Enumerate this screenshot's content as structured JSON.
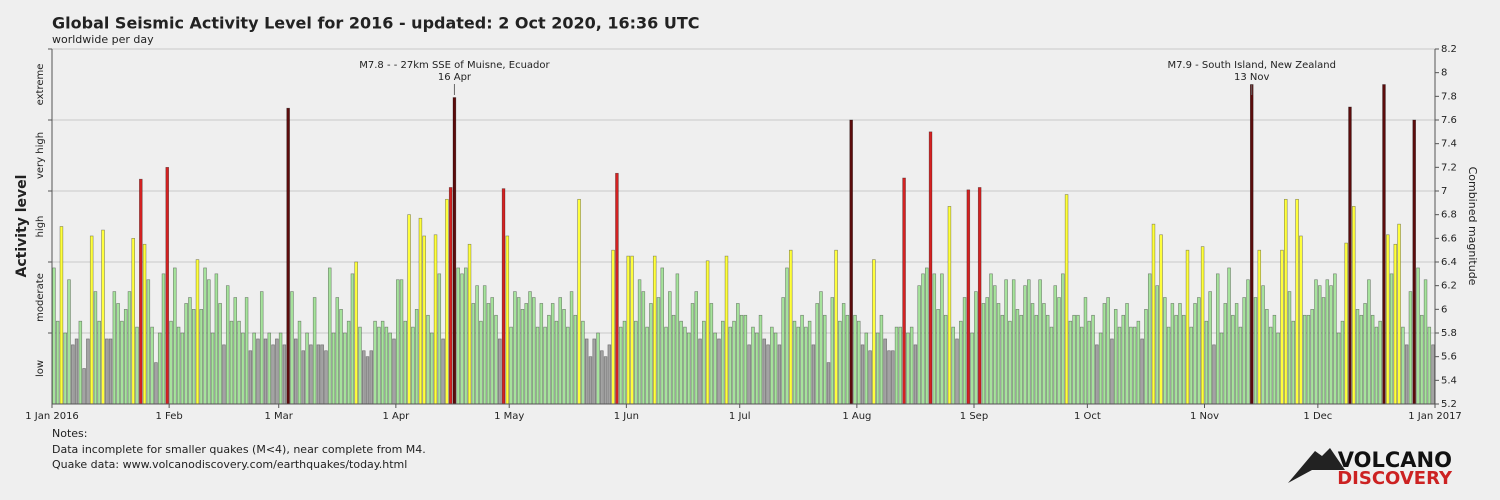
{
  "chart_data": {
    "type": "bar",
    "title": "Global Seismic Activity Level for 2016 - updated:  2 Oct 2020, 16:36 UTC",
    "subtitle": "worldwide per day",
    "y_label": "Activity level",
    "y2_label": "Combined magnitude",
    "xlim": [
      0,
      366
    ],
    "xticks": [
      {
        "value": 0,
        "label": "1 Jan 2016"
      },
      {
        "value": 31,
        "label": "1 Feb"
      },
      {
        "value": 60,
        "label": "1 Mar"
      },
      {
        "value": 91,
        "label": "1 Apr"
      },
      {
        "value": 121,
        "label": "1 May"
      },
      {
        "value": 152,
        "label": "1 Jun"
      },
      {
        "value": 182,
        "label": "1 Jul"
      },
      {
        "value": 213,
        "label": "1 Aug"
      },
      {
        "value": 244,
        "label": "1 Sep"
      },
      {
        "value": 274,
        "label": "1 Oct"
      },
      {
        "value": 305,
        "label": "1 Nov"
      },
      {
        "value": 335,
        "label": "1 Dec"
      },
      {
        "value": 366,
        "label": "1 Jan 2017"
      }
    ],
    "ylim": [
      5.2,
      8.2
    ],
    "yticks": [
      5.2,
      5.4,
      5.6,
      5.8,
      6,
      6.2,
      6.4,
      6.6,
      6.8,
      7,
      7.2,
      7.4,
      7.6,
      7.8,
      8,
      8.2
    ],
    "levels": [
      {
        "name": "low",
        "color": "#a3a3a3",
        "from": 5.2,
        "to": 5.8
      },
      {
        "name": "moderate",
        "color": "#a6e39c",
        "from": 5.8,
        "to": 6.4
      },
      {
        "name": "high",
        "color": "#ffff3c",
        "from": 6.4,
        "to": 7.0
      },
      {
        "name": "very high",
        "color": "#d42222",
        "from": 7.0,
        "to": 7.6
      },
      {
        "name": "extreme",
        "color": "#5c0c0c",
        "from": 7.6,
        "to": 8.2
      }
    ],
    "grid": true,
    "annotations": [
      {
        "text": "M7.8 - - 27km SSE of Muisne, Ecuador",
        "date": "16 Apr",
        "x": 106
      },
      {
        "text": "M7.9 - South Island, New Zealand",
        "date": "13 Nov",
        "x": 317
      }
    ],
    "values": [
      6.35,
      5.9,
      6.7,
      5.8,
      6.25,
      5.7,
      5.75,
      5.9,
      5.5,
      5.75,
      6.62,
      6.15,
      5.9,
      6.67,
      5.75,
      5.75,
      6.15,
      6.05,
      5.9,
      6.0,
      6.15,
      6.6,
      5.85,
      7.1,
      6.55,
      6.25,
      5.85,
      5.55,
      5.8,
      6.3,
      7.2,
      5.9,
      6.35,
      5.85,
      5.8,
      6.05,
      6.1,
      6.0,
      6.42,
      6.0,
      6.35,
      6.25,
      5.8,
      6.3,
      6.05,
      5.7,
      6.2,
      5.9,
      6.1,
      5.9,
      5.8,
      6.1,
      5.65,
      5.8,
      5.75,
      6.15,
      5.75,
      5.8,
      5.7,
      5.75,
      5.8,
      5.7,
      7.7,
      6.15,
      5.75,
      5.9,
      5.65,
      5.8,
      5.7,
      6.1,
      5.7,
      5.7,
      5.65,
      6.35,
      5.8,
      6.1,
      6.0,
      5.8,
      5.9,
      6.3,
      6.4,
      5.85,
      5.65,
      5.6,
      5.65,
      5.9,
      5.85,
      5.9,
      5.85,
      5.8,
      5.75,
      6.25,
      6.25,
      5.9,
      6.8,
      5.85,
      6.0,
      6.77,
      6.62,
      5.95,
      5.8,
      6.63,
      6.3,
      5.75,
      6.93,
      7.03,
      7.79,
      6.35,
      6.3,
      6.35,
      6.55,
      6.05,
      6.2,
      5.9,
      6.2,
      6.05,
      6.1,
      5.95,
      5.75,
      7.02,
      6.62,
      5.85,
      6.15,
      6.1,
      6.0,
      6.05,
      6.15,
      6.1,
      5.85,
      6.05,
      5.85,
      5.95,
      6.05,
      5.9,
      6.1,
      6.0,
      5.85,
      6.15,
      5.95,
      6.93,
      5.9,
      5.75,
      5.6,
      5.75,
      5.8,
      5.65,
      5.6,
      5.7,
      6.5,
      7.15,
      5.85,
      5.9,
      6.45,
      6.45,
      5.9,
      6.25,
      6.15,
      5.85,
      6.05,
      6.45,
      6.1,
      6.35,
      5.85,
      6.15,
      5.95,
      6.3,
      5.9,
      5.85,
      5.8,
      6.05,
      6.15,
      5.75,
      5.9,
      6.41,
      6.05,
      5.8,
      5.75,
      5.9,
      6.45,
      5.85,
      5.9,
      6.05,
      5.95,
      5.95,
      5.7,
      5.85,
      5.8,
      5.95,
      5.75,
      5.7,
      5.85,
      5.8,
      5.7,
      6.1,
      6.35,
      6.5,
      5.9,
      5.85,
      5.95,
      5.85,
      5.9,
      5.7,
      6.05,
      6.15,
      5.95,
      5.55,
      6.1,
      6.5,
      5.9,
      6.05,
      5.95,
      7.6,
      5.95,
      5.9,
      5.7,
      5.8,
      5.65,
      6.42,
      5.8,
      5.95,
      5.75,
      5.65,
      5.65,
      5.85,
      5.85,
      7.11,
      5.8,
      5.85,
      5.7,
      6.2,
      6.3,
      6.35,
      7.5,
      6.3,
      6.0,
      6.3,
      5.95,
      6.87,
      5.85,
      5.75,
      5.9,
      6.1,
      7.01,
      5.8,
      6.15,
      7.03,
      6.05,
      6.1,
      6.3,
      6.2,
      6.05,
      5.95,
      6.25,
      5.9,
      6.25,
      6.0,
      5.95,
      6.2,
      6.25,
      6.05,
      5.95,
      6.25,
      6.05,
      5.95,
      5.85,
      6.2,
      6.1,
      6.3,
      6.97,
      5.9,
      5.95,
      5.95,
      5.85,
      6.1,
      5.9,
      5.95,
      5.7,
      5.8,
      6.05,
      6.1,
      5.75,
      6.0,
      5.85,
      5.95,
      6.05,
      5.85,
      5.85,
      5.9,
      5.75,
      6.0,
      6.3,
      6.72,
      6.2,
      6.63,
      6.1,
      5.85,
      6.05,
      5.95,
      6.05,
      5.95,
      6.5,
      5.85,
      6.05,
      6.1,
      6.53,
      5.9,
      6.15,
      5.7,
      6.3,
      5.8,
      6.05,
      6.35,
      5.95,
      6.05,
      5.85,
      6.1,
      6.25,
      7.9,
      6.1,
      6.5,
      6.2,
      6.0,
      5.85,
      5.95,
      5.8,
      6.5,
      6.93,
      6.15,
      5.9,
      6.93,
      6.62,
      5.95,
      5.95,
      6.0,
      6.25,
      6.2,
      6.1,
      6.25,
      6.2,
      6.3,
      5.8,
      5.9,
      6.56,
      7.71,
      6.87,
      6.0,
      5.95,
      6.05,
      6.25,
      5.95,
      5.85,
      5.9,
      7.9,
      6.63,
      6.3,
      6.55,
      6.72,
      5.85,
      5.7,
      6.15,
      7.6,
      6.35,
      5.95,
      6.25,
      5.85,
      5.7
    ]
  },
  "notes": [
    "Notes:",
    "Data incomplete for smaller quakes (M<4), near complete from M4.",
    "Quake data: www.volcanodiscovery.com/earthquakes/today.html"
  ],
  "logo": [
    "VOLCANO",
    "DISCOVERY"
  ]
}
